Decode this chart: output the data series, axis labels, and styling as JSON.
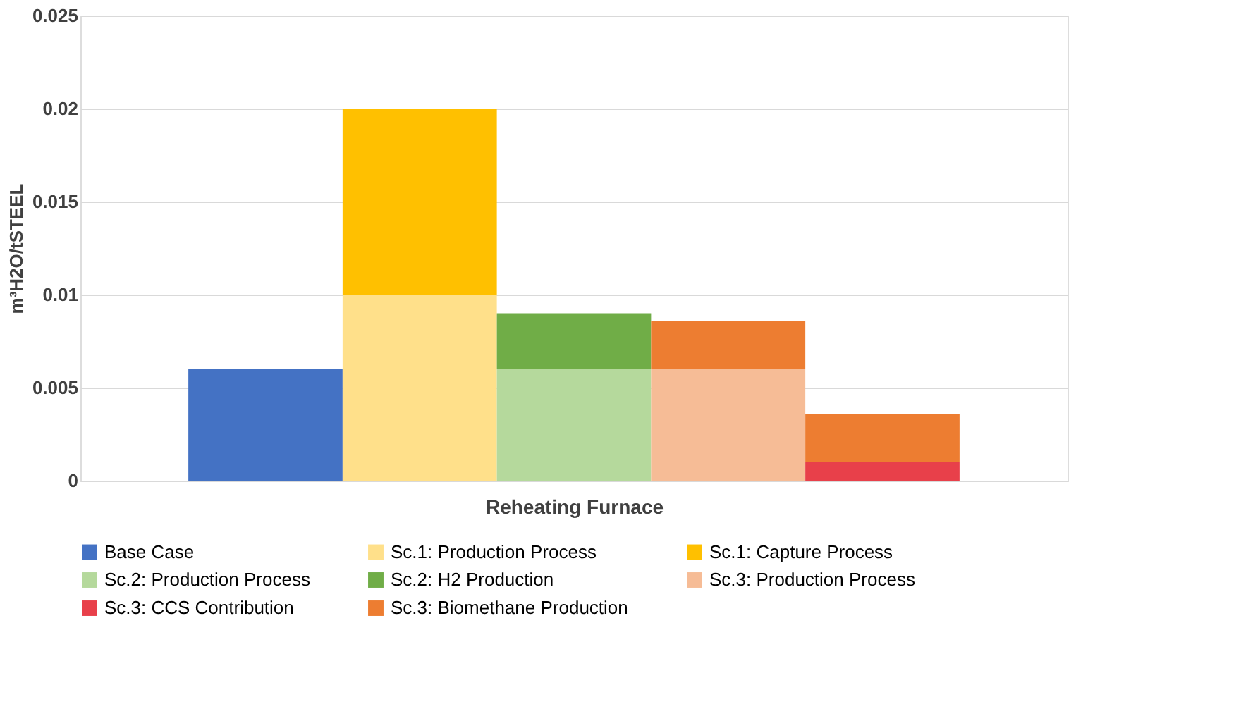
{
  "chart_data": {
    "type": "bar",
    "stacked": true,
    "xlabel": "Reheating Furnace",
    "ylabel": "m³H2O/tSTEEL",
    "categories": [
      null,
      null,
      null,
      null,
      null
    ],
    "series": [
      {
        "name": "Base Case",
        "color": "#4472c4",
        "values": [
          0.006,
          null,
          null,
          null,
          null
        ]
      },
      {
        "name": "Sc.1: Production Process",
        "color": "#ffe08a",
        "values": [
          null,
          0.01,
          null,
          null,
          null
        ]
      },
      {
        "name": "Sc.1: Capture Process",
        "color": "#ffc000",
        "values": [
          null,
          0.01,
          null,
          null,
          null
        ]
      },
      {
        "name": "Sc.2: Production Process",
        "color": "#b5d99c",
        "values": [
          null,
          null,
          0.006,
          null,
          null
        ]
      },
      {
        "name": "Sc.2: H2 Production",
        "color": "#70ad47",
        "values": [
          null,
          null,
          0.003,
          null,
          null
        ]
      },
      {
        "name": "Sc.3: Production Process",
        "color": "#f6bc96",
        "values": [
          null,
          null,
          null,
          0.006,
          null
        ]
      },
      {
        "name": "Sc.3: CCS Contribution",
        "color": "#e8404a",
        "values": [
          null,
          null,
          null,
          null,
          0.001
        ]
      },
      {
        "name": "Sc.3: Biomethane Production",
        "color": "#ed7d31",
        "values": [
          null,
          null,
          null,
          0.0026,
          0.0026
        ]
      }
    ],
    "ylim": [
      0,
      0.025
    ],
    "yticks": [
      0,
      0.005,
      0.01,
      0.015,
      0.02,
      0.025
    ],
    "grid": "y",
    "legend": "bottom",
    "tick_labels": "y"
  }
}
